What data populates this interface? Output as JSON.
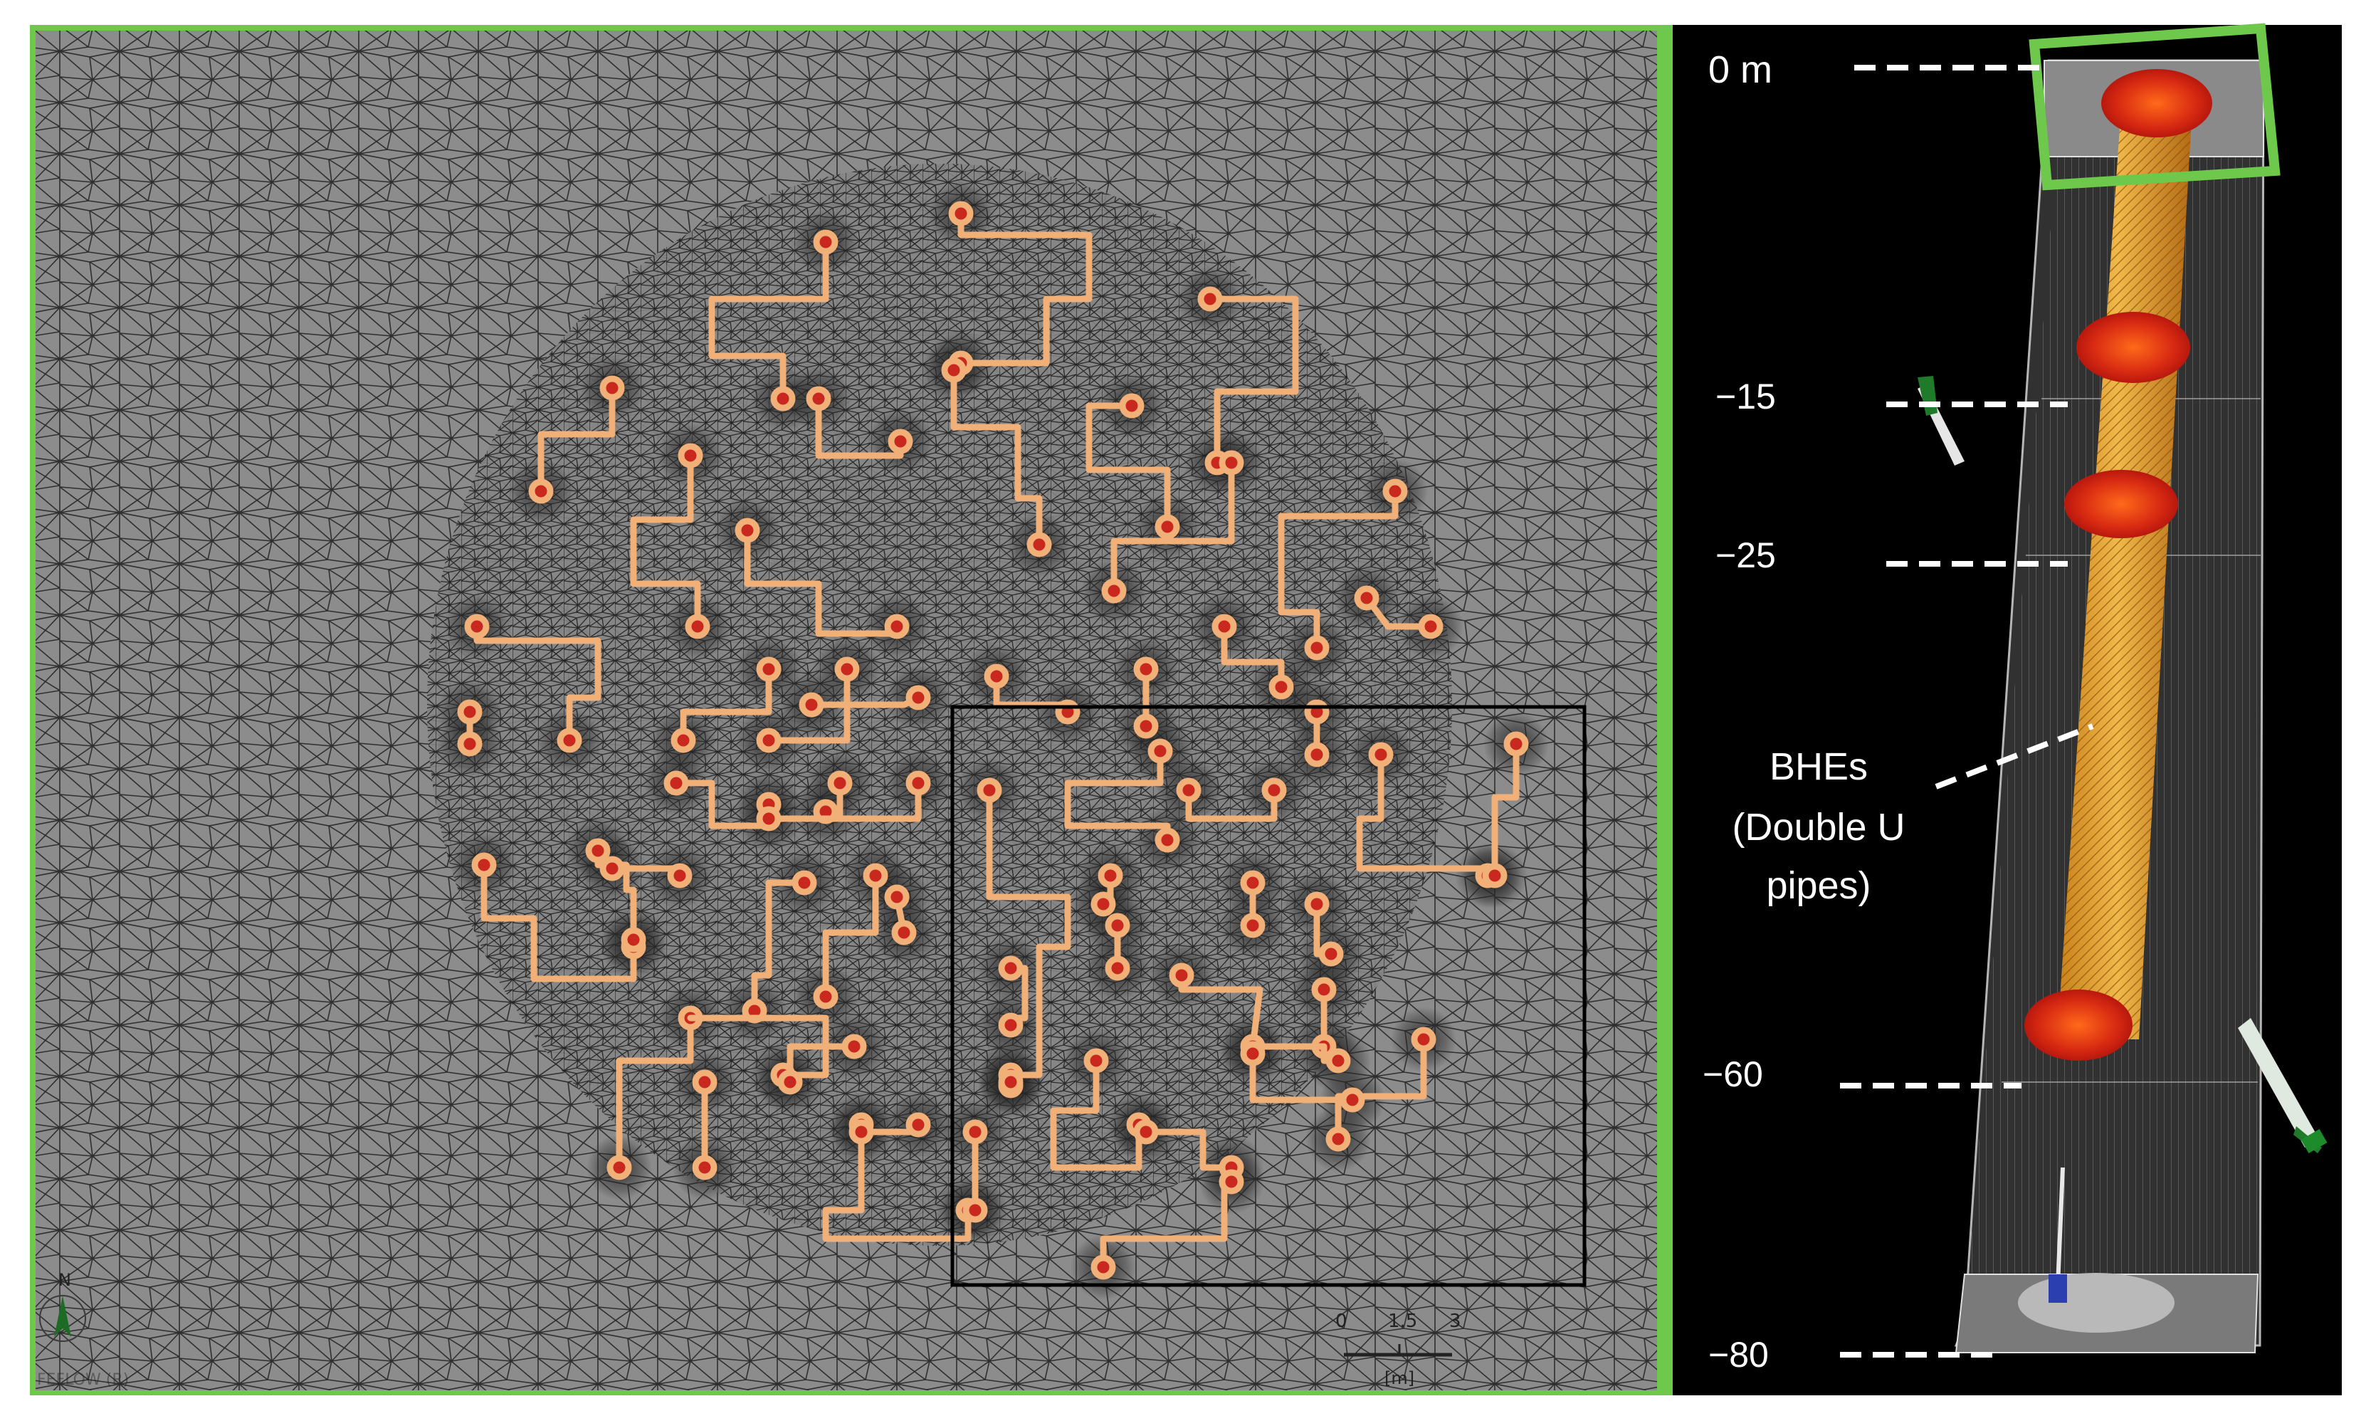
{
  "depth_markers": [
    {
      "label": "0 m",
      "value": 0
    },
    {
      "label": "−15",
      "value": -15
    },
    {
      "label": "−25",
      "value": -25
    },
    {
      "label": "−60",
      "value": -60
    },
    {
      "label": "−80",
      "value": -80
    }
  ],
  "bhe_annotation": {
    "line1": "BHEs",
    "line2": "(Double U",
    "line3": "pipes)"
  },
  "scale_bar": {
    "ticks": [
      "0",
      "1.5",
      "3"
    ],
    "unit": "[m]"
  },
  "north_arrow": {
    "label": "N"
  },
  "watermark": "FEFLOW (R)",
  "colors": {
    "panel_border": "#6ec84c",
    "mesh_background": "#8c8c8c",
    "mesh_lines": "#2e2e2e",
    "pipe": "#f0b078",
    "bhe_node": "#c8281e",
    "column_fill": "#e09a2a",
    "right_background": "#000000"
  },
  "icons": [
    "north-arrow-icon",
    "scale-bar-icon",
    "view-axis-icon"
  ]
}
